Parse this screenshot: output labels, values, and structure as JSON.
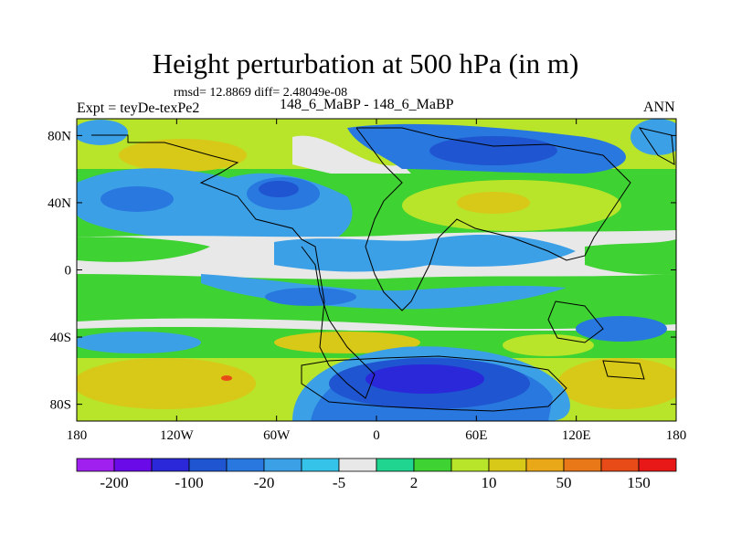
{
  "header": {
    "title": "Height perturbation at 500 hPa (in m)",
    "stats": "rmsd= 12.8869  diff= 2.48049e-08",
    "left_label": "Expt = teyDe-texPe2",
    "center_label": "148_6_MaBP - 148_6_MaBP",
    "right_label": "ANN"
  },
  "map": {
    "x_ticks": [
      "180",
      "120W",
      "60W",
      "0",
      "60E",
      "120E",
      "180"
    ],
    "y_ticks": [
      "80N",
      "40N",
      "0",
      "40S",
      "80S"
    ],
    "lon_range": [
      -180,
      180
    ],
    "lat_range": [
      -90,
      90
    ]
  },
  "colorbar": {
    "labels": [
      "-200",
      "-100",
      "-20",
      "-5",
      "2",
      "10",
      "50",
      "150"
    ],
    "colors": [
      "#a020f0",
      "#6a0ae8",
      "#2a28d8",
      "#1f55d0",
      "#2878e0",
      "#3ca0e6",
      "#36c3ea",
      "#e8e8e8",
      "#1fd58f",
      "#3ed232",
      "#b8e52a",
      "#d8c818",
      "#e8a818",
      "#e87818",
      "#e84a18",
      "#e81818"
    ]
  },
  "fill_colors": {
    "deep_blue": "#2a28d8",
    "mid_blue": "#1f55d0",
    "blue": "#2878e0",
    "light_blue": "#3ca0e6",
    "cyan": "#36c3ea",
    "white": "#e8e8e8",
    "teal": "#1fd58f",
    "green": "#3ed232",
    "yellow_green": "#b8e52a",
    "olive": "#d8c818",
    "orange": "#e8a818",
    "red": "#e84a18"
  }
}
